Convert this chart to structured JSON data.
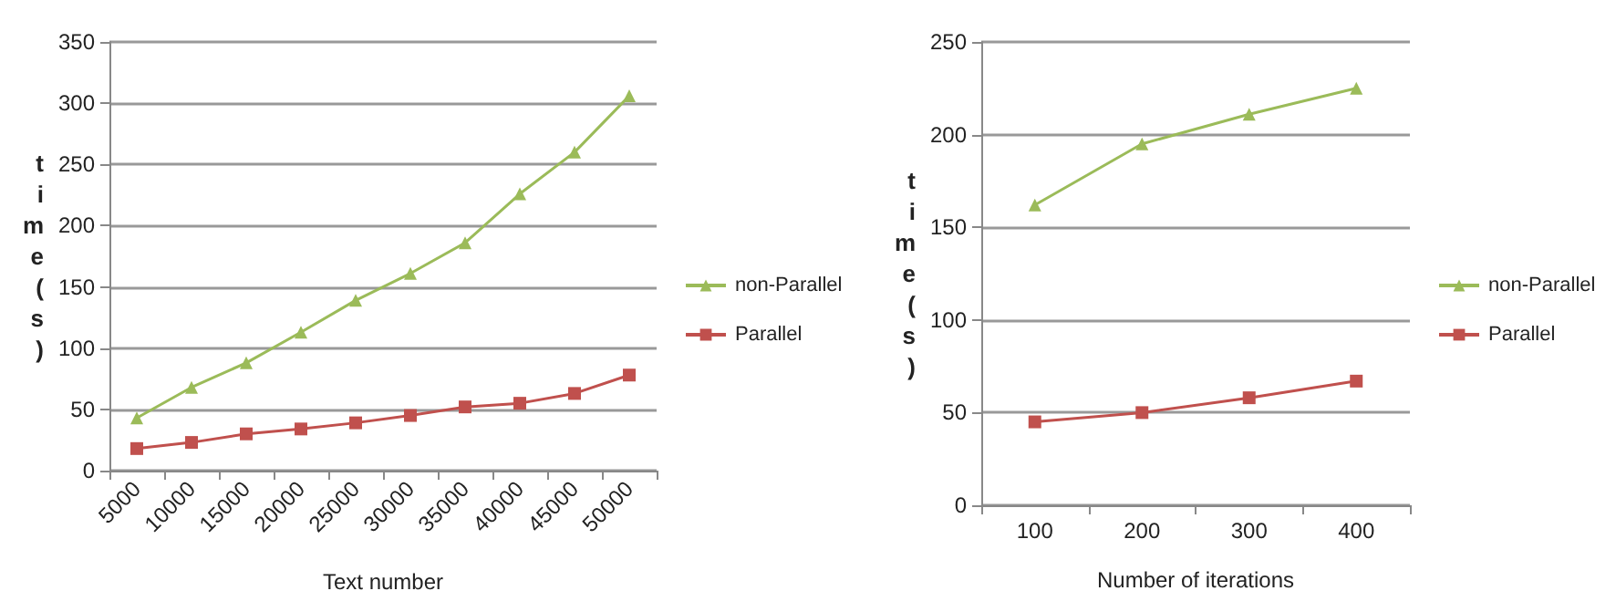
{
  "chart_data": [
    {
      "type": "line",
      "xlabel": "Text number",
      "ylabel": "time(s)",
      "categories": [
        "5000",
        "10000",
        "15000",
        "20000",
        "25000",
        "30000",
        "35000",
        "40000",
        "45000",
        "50000"
      ],
      "series": [
        {
          "name": "non-Parallel",
          "color": "#9bbb59",
          "marker": "triangle",
          "values": [
            43,
            68,
            88,
            113,
            139,
            161,
            186,
            226,
            260,
            306
          ]
        },
        {
          "name": "Parallel",
          "color": "#c0504d",
          "marker": "square",
          "values": [
            18,
            23,
            30,
            34,
            39,
            45,
            52,
            55,
            63,
            78
          ]
        }
      ],
      "ylim": [
        0,
        350
      ],
      "yticks": [
        0,
        50,
        100,
        150,
        200,
        250,
        300,
        350
      ],
      "grid": "y",
      "legend": "right"
    },
    {
      "type": "line",
      "xlabel": "Number of iterations",
      "ylabel": "time(s)",
      "categories": [
        "100",
        "200",
        "300",
        "400"
      ],
      "series": [
        {
          "name": "non-Parallel",
          "color": "#9bbb59",
          "marker": "triangle",
          "values": [
            162,
            195,
            211,
            225
          ]
        },
        {
          "name": "Parallel",
          "color": "#c0504d",
          "marker": "square",
          "values": [
            45,
            50,
            58,
            67
          ]
        }
      ],
      "ylim": [
        0,
        250
      ],
      "yticks": [
        0,
        50,
        100,
        150,
        200,
        250
      ],
      "grid": "y",
      "legend": "right"
    }
  ]
}
